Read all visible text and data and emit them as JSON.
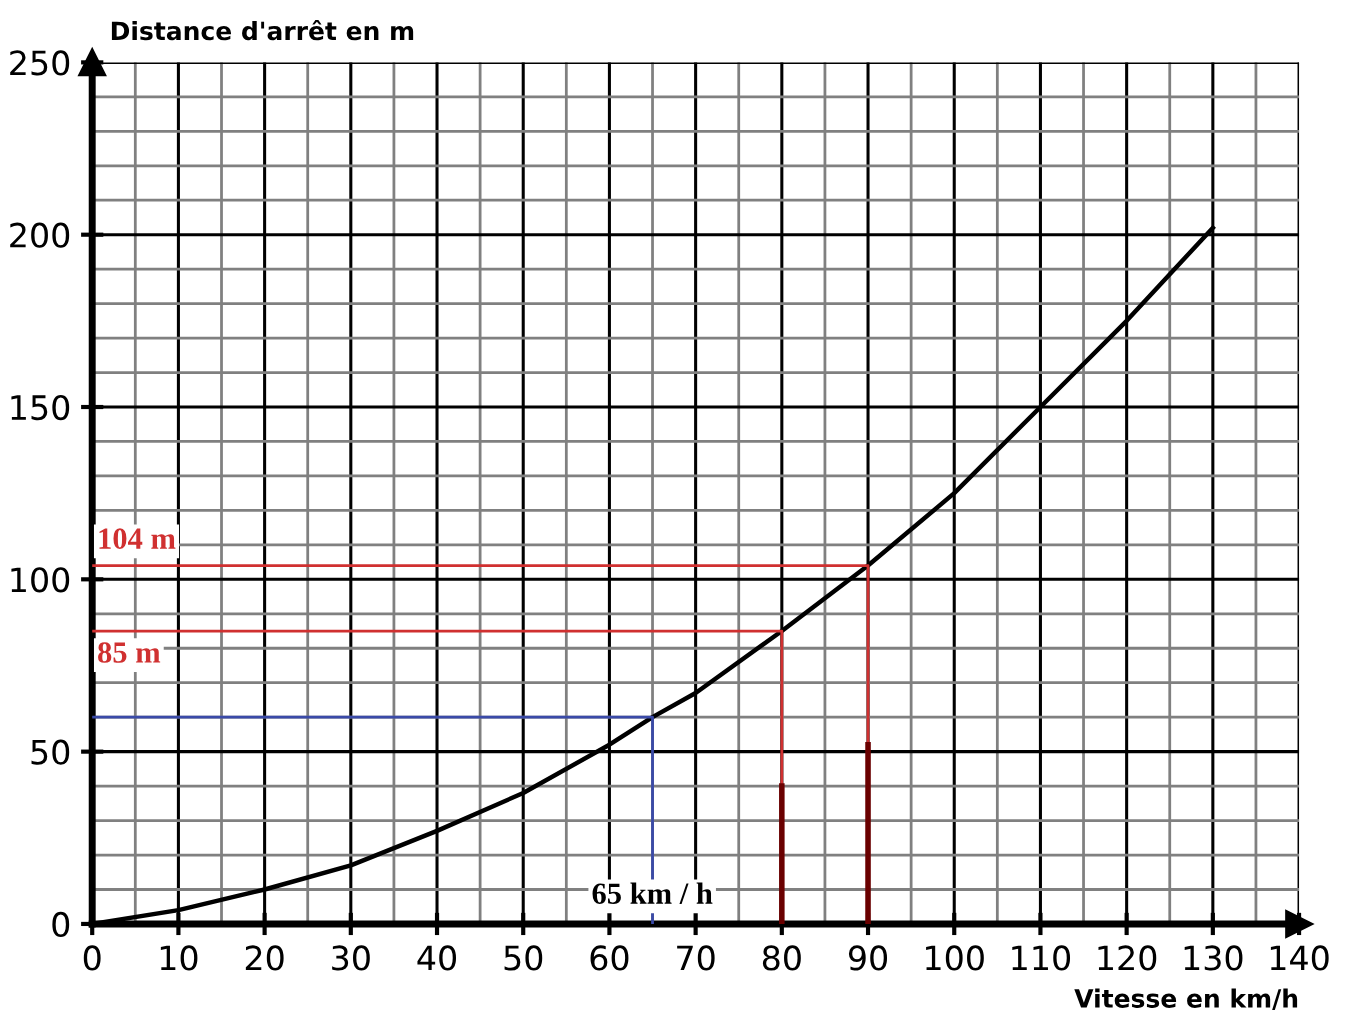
{
  "chart_data": {
    "type": "line",
    "xlabel": "Vitesse en km/h",
    "ylabel": "Distance d'arrêt en m",
    "xlim": [
      0,
      140
    ],
    "ylim": [
      0,
      250
    ],
    "xticks": [
      0,
      10,
      20,
      30,
      40,
      50,
      60,
      70,
      80,
      90,
      100,
      110,
      120,
      130,
      140
    ],
    "yticks": [
      0,
      50,
      100,
      150,
      200,
      250
    ],
    "grid": true,
    "marker": "none",
    "line_style": "solid",
    "series": [
      {
        "color": "#000000",
        "x": [
          0,
          10,
          20,
          30,
          40,
          50,
          60,
          65,
          70,
          80,
          90,
          100,
          110,
          120,
          130
        ],
        "values": [
          0,
          4,
          10,
          17,
          27,
          38,
          52,
          60,
          67,
          85,
          104,
          125,
          150,
          175,
          202
        ]
      },
      {
        "color": "#d03030",
        "x": [
          0,
          90,
          90
        ],
        "values": [
          104,
          104,
          0
        ]
      },
      {
        "color": "#d03030",
        "x": [
          0,
          80,
          80
        ],
        "values": [
          85,
          85,
          0
        ]
      },
      {
        "color": "#3a4aa8",
        "x": [
          0,
          65,
          65
        ],
        "values": [
          60,
          60,
          0
        ]
      },
      {
        "color": "#6a0000",
        "x": [
          80,
          80
        ],
        "values": [
          0,
          40
        ]
      },
      {
        "color": "#6a0000",
        "x": [
          90,
          90
        ],
        "values": [
          0,
          52
        ]
      }
    ],
    "annotations": [
      "104 m",
      "85 m",
      "65 km / h"
    ]
  }
}
